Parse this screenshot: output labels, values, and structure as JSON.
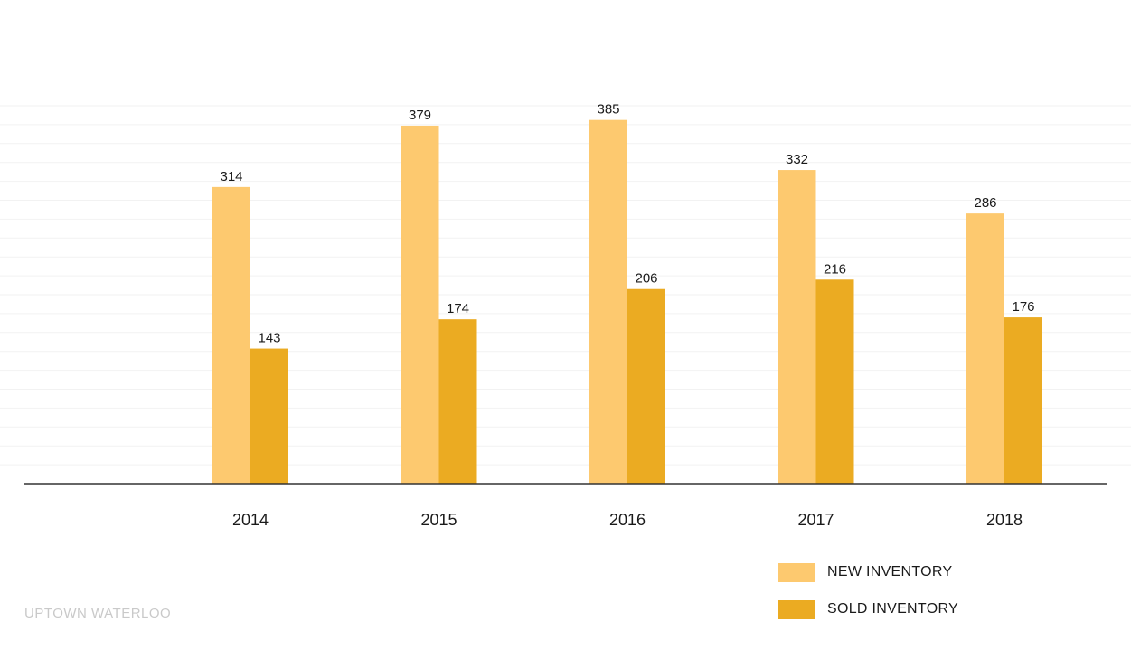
{
  "chart_data": {
    "type": "bar",
    "categories": [
      "2014",
      "2015",
      "2016",
      "2017",
      "2018"
    ],
    "series": [
      {
        "name": "NEW INVENTORY",
        "values": [
          314,
          379,
          385,
          332,
          286
        ],
        "color": "#fdc96f"
      },
      {
        "name": "SOLD INVENTORY",
        "values": [
          143,
          174,
          206,
          216,
          176
        ],
        "color": "#ebab22"
      }
    ],
    "ylim": [
      0,
      400
    ],
    "grid": true,
    "legend_position": "bottom-right",
    "data_labels": true
  },
  "source": "UPTOWN WATERLOO"
}
